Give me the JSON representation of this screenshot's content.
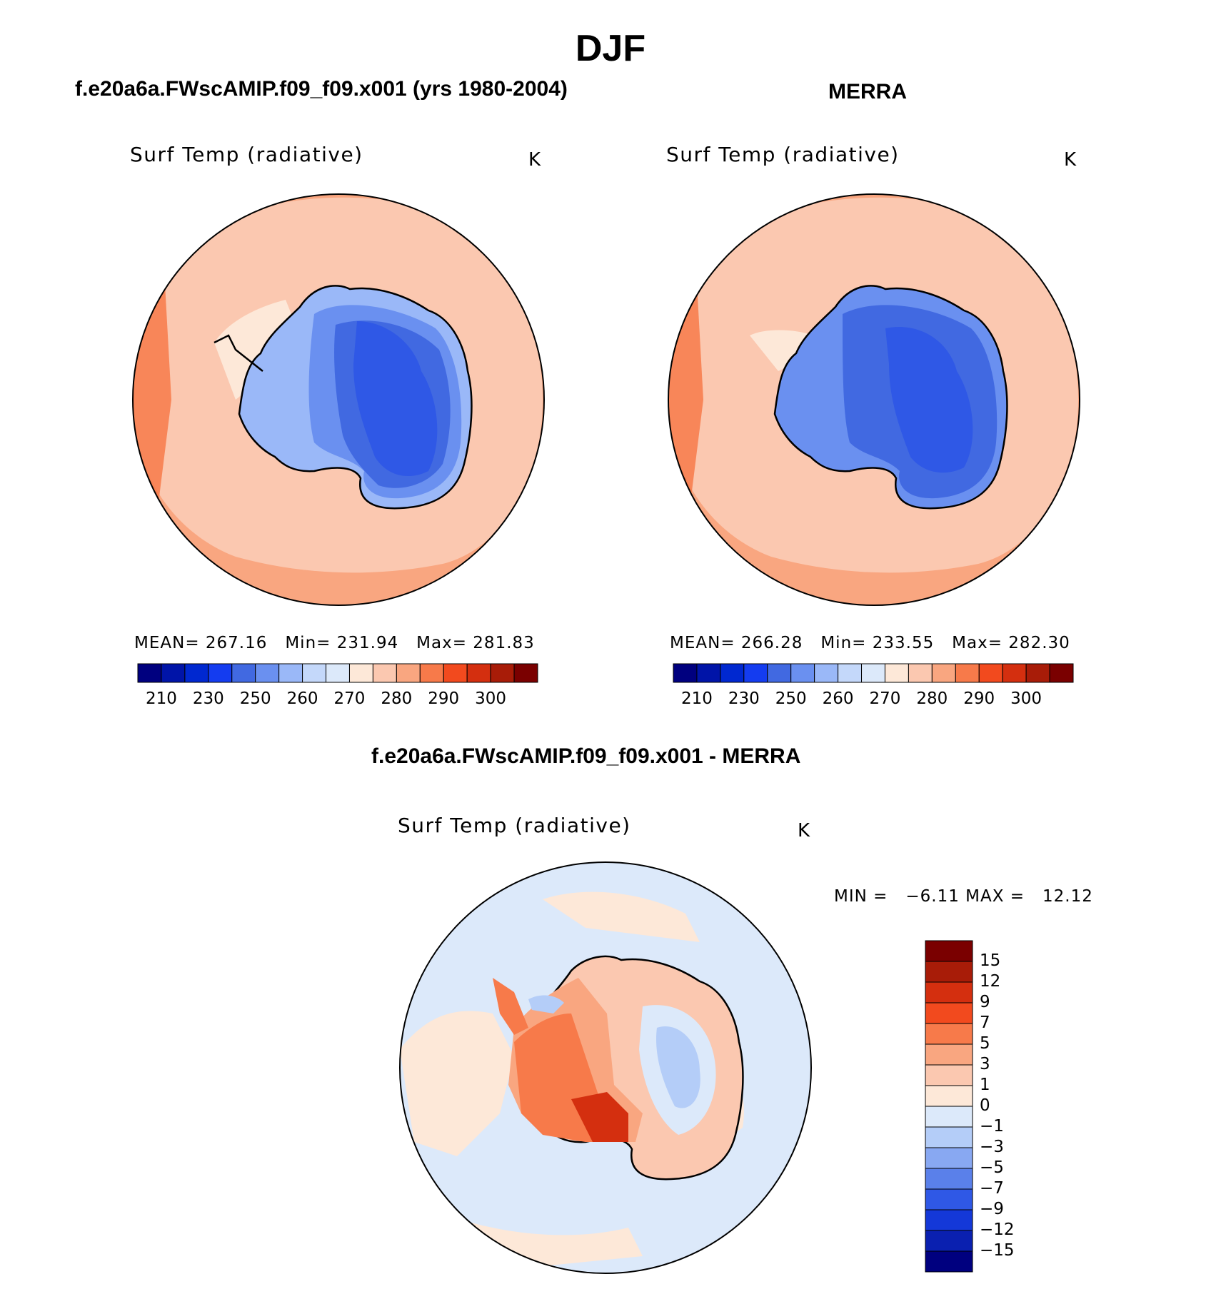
{
  "figure": {
    "title": "DJF"
  },
  "panels": {
    "model": {
      "case_title": "f.e20a6a.FWscAMIP.f09_f09.x001 (yrs 1980-2004)",
      "variable": "Surf Temp (radiative)",
      "units": "K",
      "stats": {
        "mean_label": "MEAN=",
        "mean": "267.16",
        "min_label": "Min=",
        "min": "231.94",
        "max_label": "Max=",
        "max": "281.83"
      }
    },
    "obs": {
      "case_title": "MERRA",
      "variable": "Surf Temp (radiative)",
      "units": "K",
      "stats": {
        "mean_label": "MEAN=",
        "mean": "266.28",
        "min_label": "Min=",
        "min": "233.55",
        "max_label": "Max=",
        "max": "282.30"
      }
    },
    "diff": {
      "case_title": "f.e20a6a.FWscAMIP.f09_f09.x001 - MERRA",
      "variable": "Surf Temp (radiative)",
      "units": "K",
      "stats": {
        "min_label": "MIN =",
        "min": "−6.11",
        "max_label": "MAX =",
        "max": "12.12"
      }
    }
  },
  "chart_data": [
    {
      "type": "heatmap",
      "projection": "south-polar-stereographic",
      "title": "Surf Temp (radiative)",
      "case": "f.e20a6a.FWscAMIP.f09_f09.x001 (yrs 1980-2004)",
      "units": "K",
      "mean": 267.16,
      "min": 231.94,
      "max": 281.83,
      "contour_levels": [
        200,
        210,
        220,
        230,
        240,
        250,
        255,
        260,
        265,
        270,
        275,
        280,
        285,
        290,
        295,
        300
      ],
      "colorbar_tick_labels": [
        "210",
        "230",
        "250",
        "260",
        "270",
        "280",
        "290",
        "300"
      ],
      "colors": [
        "#00007f",
        "#0014a8",
        "#0028d0",
        "#143cf0",
        "#4169e1",
        "#6a90f0",
        "#9ab8f8",
        "#c4d8fa",
        "#dce9fa",
        "#fde8d8",
        "#fbc8b0",
        "#f9a680",
        "#f77a4a",
        "#f24a1e",
        "#d42f0f",
        "#a81c08",
        "#7a0000"
      ]
    },
    {
      "type": "heatmap",
      "projection": "south-polar-stereographic",
      "title": "Surf Temp (radiative)",
      "case": "MERRA",
      "units": "K",
      "mean": 266.28,
      "min": 233.55,
      "max": 282.3,
      "contour_levels": [
        200,
        210,
        220,
        230,
        240,
        250,
        255,
        260,
        265,
        270,
        275,
        280,
        285,
        290,
        295,
        300
      ],
      "colorbar_tick_labels": [
        "210",
        "230",
        "250",
        "260",
        "270",
        "280",
        "290",
        "300"
      ]
    },
    {
      "type": "heatmap",
      "projection": "south-polar-stereographic",
      "title": "Surf Temp (radiative)",
      "case": "f.e20a6a.FWscAMIP.f09_f09.x001 - MERRA",
      "units": "K",
      "min": -6.11,
      "max": 12.12,
      "colorbar_tick_labels": [
        "15",
        "12",
        "9",
        "7",
        "5",
        "3",
        "1",
        "0",
        "−1",
        "−3",
        "−5",
        "−7",
        "−9",
        "−12",
        "−15"
      ],
      "colors": [
        "#7a0000",
        "#a81c08",
        "#d42f0f",
        "#f24a1e",
        "#f77a4a",
        "#f9a680",
        "#fbc8b0",
        "#fde8d8",
        "#dce9fa",
        "#b4cdf8",
        "#88a8f2",
        "#5a80ea",
        "#2f58e6",
        "#1438d8",
        "#0a20b0",
        "#00007f"
      ]
    }
  ]
}
